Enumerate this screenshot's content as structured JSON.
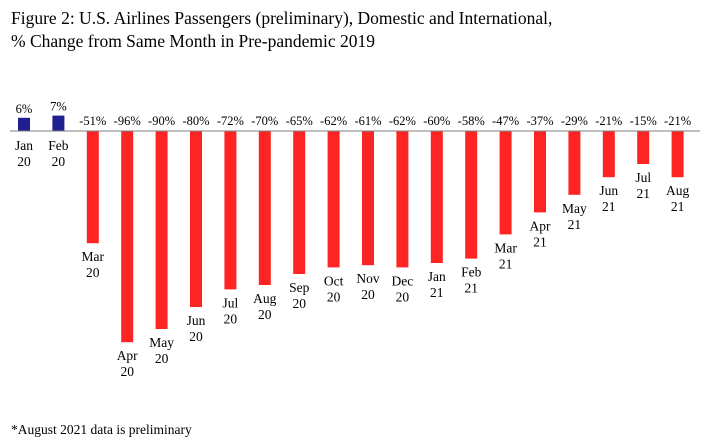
{
  "title": {
    "line1": "Figure 2: U.S. Airlines Passengers (preliminary), Domestic and International,",
    "line2": "% Change from Same Month in Pre-pandemic 2019"
  },
  "footnote": "*August 2021 data is preliminary",
  "chart_data": {
    "type": "bar",
    "categories": [
      [
        "Jan",
        "20"
      ],
      [
        "Feb",
        "20"
      ],
      [
        "Mar",
        "20"
      ],
      [
        "Apr",
        "20"
      ],
      [
        "May",
        "20"
      ],
      [
        "Jun",
        "20"
      ],
      [
        "Jul",
        "20"
      ],
      [
        "Aug",
        "20"
      ],
      [
        "Sep",
        "20"
      ],
      [
        "Oct",
        "20"
      ],
      [
        "Nov",
        "20"
      ],
      [
        "Dec",
        "20"
      ],
      [
        "Jan",
        "21"
      ],
      [
        "Feb",
        "21"
      ],
      [
        "Mar",
        "21"
      ],
      [
        "Apr",
        "21"
      ],
      [
        "May",
        "21"
      ],
      [
        "Jun",
        "21"
      ],
      [
        "Jul",
        "21"
      ],
      [
        "Aug",
        "21"
      ]
    ],
    "values": [
      6,
      7,
      -51,
      -96,
      -90,
      -80,
      -72,
      -70,
      -65,
      -62,
      -61,
      -62,
      -60,
      -58,
      -47,
      -37,
      -29,
      -21,
      -15,
      -21
    ],
    "value_labels": [
      "6%",
      "7%",
      "-51%",
      "-96%",
      "-90%",
      "-80%",
      "-72%",
      "-70%",
      "-65%",
      "-62%",
      "-61%",
      "-62%",
      "-60%",
      "-58%",
      "-47%",
      "-37%",
      "-29%",
      "-21%",
      "-15%",
      "-21%"
    ],
    "colors": {
      "positive": "#1f1f8f",
      "negative": "#ff2424",
      "axis": "#7f7f7f"
    },
    "xlabel": "",
    "ylabel": "",
    "grid": false,
    "legend": "none"
  }
}
